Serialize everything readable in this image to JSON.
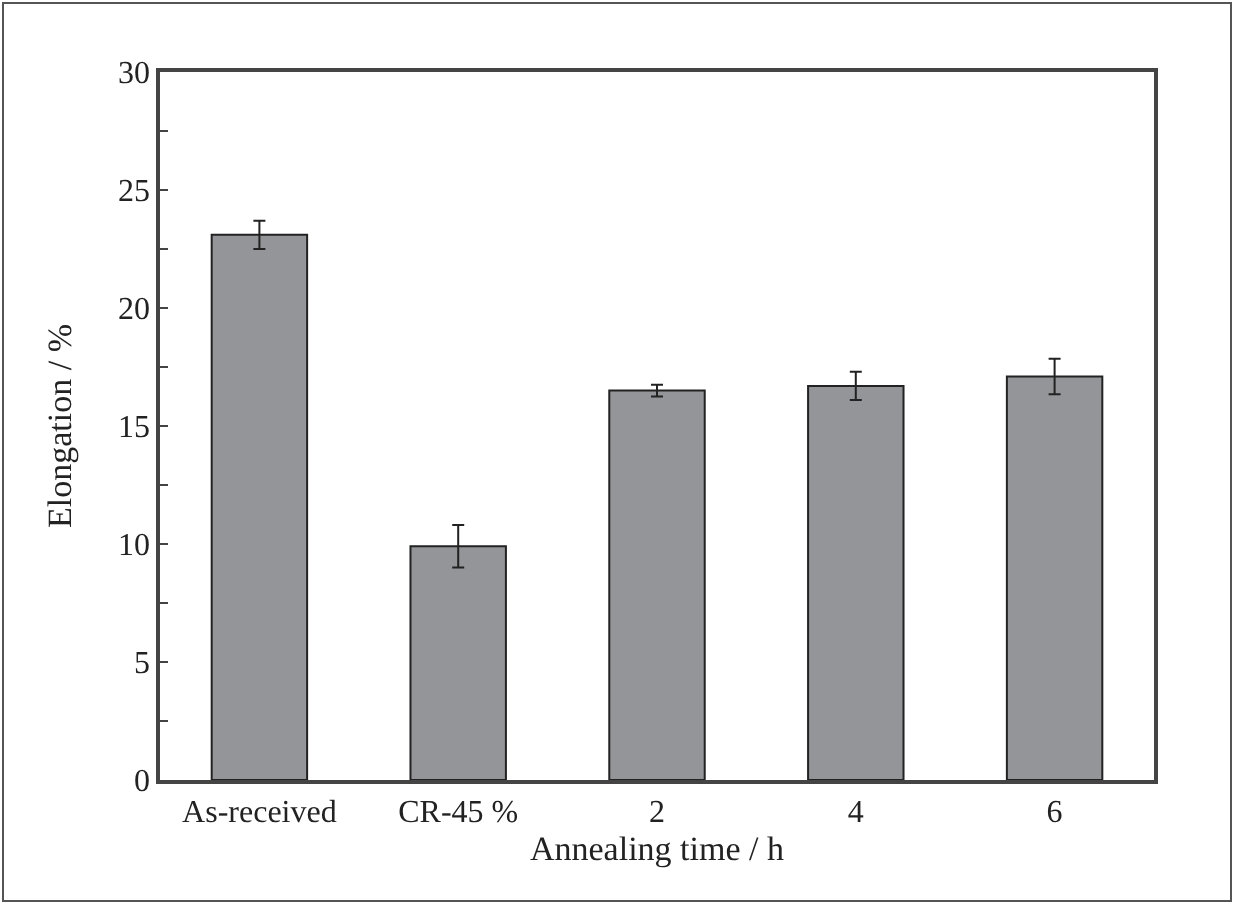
{
  "chart_data": {
    "type": "bar",
    "xlabel": "Annealing time / h",
    "ylabel": "Elongation / %",
    "categories": [
      "As-received",
      "CR-45 %",
      "2",
      "4",
      "6"
    ],
    "series": [
      {
        "color": "#939598",
        "values": [
          23.1,
          9.9,
          16.5,
          16.7,
          17.1
        ],
        "errors": [
          0.6,
          0.9,
          0.25,
          0.6,
          0.75
        ]
      }
    ],
    "ylim": [
      0,
      30
    ],
    "yticks": [
      0,
      {
        "value": 2.5,
        "label": null
      },
      5,
      {
        "value": 7.5,
        "label": null
      },
      10,
      {
        "value": 12.5,
        "label": null
      },
      15,
      {
        "value": 17.5,
        "label": null
      },
      20,
      {
        "value": 22.5,
        "label": null
      },
      25,
      {
        "value": 27.5,
        "label": null
      },
      30
    ],
    "grid": false
  }
}
